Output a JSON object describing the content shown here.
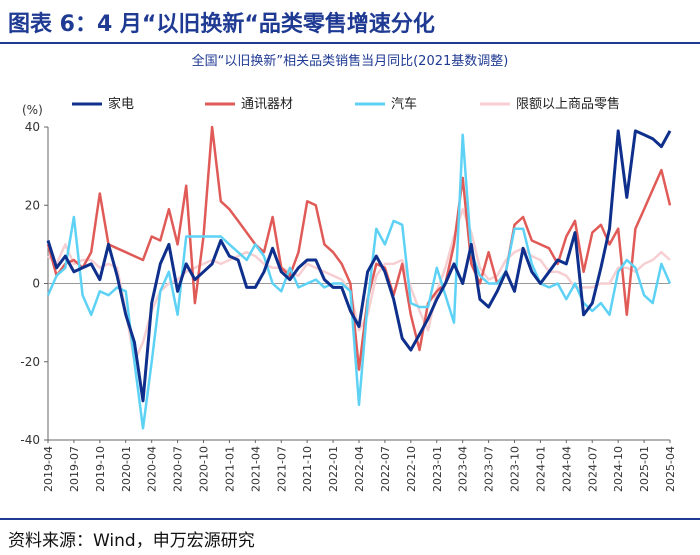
{
  "header": {
    "title": "图表 6：4 月“以旧换新“品类零售增速分化"
  },
  "subtitle": "全国“以旧换新”相关品类销售当月同比(2021基数调整)",
  "footer": {
    "source": "资料来源：Wind，申万宏源研究"
  },
  "chart_data": {
    "type": "line",
    "ylabel": "(%)",
    "ylim": [
      -40,
      40
    ],
    "yticks": [
      40,
      20,
      0,
      -20,
      -40
    ],
    "legend_position": "top",
    "grid": false,
    "x": [
      "2019-04",
      "2019-05",
      "2019-06",
      "2019-07",
      "2019-08",
      "2019-09",
      "2019-10",
      "2019-11",
      "2019-12",
      "2020-01",
      "2020-02",
      "2020-03",
      "2020-04",
      "2020-05",
      "2020-06",
      "2020-07",
      "2020-08",
      "2020-09",
      "2020-10",
      "2020-11",
      "2020-12",
      "2021-01",
      "2021-02",
      "2021-03",
      "2021-04",
      "2021-05",
      "2021-06",
      "2021-07",
      "2021-08",
      "2021-09",
      "2021-10",
      "2021-11",
      "2021-12",
      "2022-01",
      "2022-02",
      "2022-03",
      "2022-04",
      "2022-05",
      "2022-06",
      "2022-07",
      "2022-08",
      "2022-09",
      "2022-10",
      "2022-11",
      "2022-12",
      "2023-01",
      "2023-02",
      "2023-03",
      "2023-04",
      "2023-05",
      "2023-06",
      "2023-07",
      "2023-08",
      "2023-09",
      "2023-10",
      "2023-11",
      "2023-12",
      "2024-01",
      "2024-02",
      "2024-03",
      "2024-04",
      "2024-05",
      "2024-06",
      "2024-07",
      "2024-08",
      "2024-09",
      "2024-10",
      "2024-11",
      "2024-12",
      "2025-01",
      "2025-02",
      "2025-03",
      "2025-04"
    ],
    "xtick_labels": [
      "2019-04",
      "2019-07",
      "2019-10",
      "2020-01",
      "2020-04",
      "2020-07",
      "2020-10",
      "2021-01",
      "2021-04",
      "2021-07",
      "2021-10",
      "2022-01",
      "2022-04",
      "2022-07",
      "2022-10",
      "2023-01",
      "2023-04",
      "2023-07",
      "2023-10",
      "2024-01",
      "2024-04",
      "2024-07",
      "2024-10",
      "2025-01",
      "2025-04"
    ],
    "series": [
      {
        "name": "家电",
        "color": "#0e2f8c",
        "width": 3,
        "values": [
          11,
          4,
          7,
          3,
          4,
          5,
          1,
          10,
          2,
          -8,
          -15,
          -30,
          -5,
          5,
          10,
          -2,
          5,
          1,
          3,
          5,
          11,
          7,
          6,
          -1,
          -1,
          3,
          9,
          3,
          1,
          4,
          6,
          6,
          1,
          -1,
          -1,
          -7,
          -11,
          3,
          7,
          3,
          -4,
          -14,
          -17,
          -13,
          -9,
          -4,
          0,
          5,
          0,
          10,
          -4,
          -6,
          -2,
          3,
          -2,
          9,
          3,
          0,
          3,
          6,
          5,
          13,
          -8,
          -5,
          4,
          14,
          39,
          22,
          39,
          38,
          37,
          35,
          39
        ]
      },
      {
        "name": "通讯器材",
        "color": "#e05a57",
        "width": 2.5,
        "values": [
          10,
          2,
          5,
          6,
          4,
          8,
          23,
          10,
          9,
          8,
          7,
          6,
          12,
          11,
          19,
          10,
          25,
          -5,
          12,
          40,
          21,
          19,
          16,
          13,
          10,
          8,
          17,
          4,
          2,
          8,
          21,
          20,
          10,
          8,
          5,
          0,
          -22,
          -4,
          5,
          4,
          -3,
          5,
          -8,
          -17,
          -5,
          -2,
          0,
          10,
          27,
          5,
          0,
          8,
          0,
          3,
          15,
          17,
          11,
          10,
          9,
          5,
          12,
          16,
          3,
          13,
          15,
          10,
          14,
          -8,
          14,
          19,
          24,
          29,
          20
        ]
      },
      {
        "name": "汽车",
        "color": "#5dd2f5",
        "width": 2.5,
        "values": [
          -3,
          2,
          4,
          17,
          -3,
          -8,
          -2,
          -3,
          -1,
          -2,
          -20,
          -37,
          -20,
          -2,
          3,
          -8,
          12,
          12,
          12,
          12,
          12,
          10,
          8,
          6,
          10,
          7,
          0,
          -2,
          4,
          -1,
          0,
          1,
          -1,
          0,
          0,
          -2,
          -31,
          -5,
          14,
          10,
          16,
          15,
          -5,
          -6,
          -6,
          4,
          -3,
          -10,
          38,
          8,
          2,
          0,
          0,
          3,
          14,
          14,
          5,
          0,
          -1,
          0,
          -4,
          0,
          -5,
          -7,
          -5,
          -8,
          3,
          6,
          4,
          -3,
          -5,
          5,
          0
        ]
      },
      {
        "name": "限额以上商品零售",
        "color": "#f7cfd2",
        "width": 2.5,
        "values": [
          7,
          5,
          10,
          5,
          6,
          6,
          4,
          5,
          4,
          -7,
          -20,
          -15,
          -7,
          -2,
          0,
          1,
          3,
          4,
          5,
          6,
          5,
          6,
          7,
          8,
          7,
          5,
          4,
          4,
          3,
          2,
          5,
          4,
          3,
          2,
          1,
          -2,
          -12,
          -8,
          2,
          5,
          5,
          6,
          -1,
          -7,
          -12,
          -2,
          4,
          12,
          19,
          13,
          4,
          1,
          2,
          6,
          8,
          9,
          7,
          6,
          3,
          3,
          2,
          -1,
          -1,
          -1,
          0,
          0,
          4,
          4,
          3,
          5,
          6,
          8,
          6
        ]
      }
    ]
  }
}
